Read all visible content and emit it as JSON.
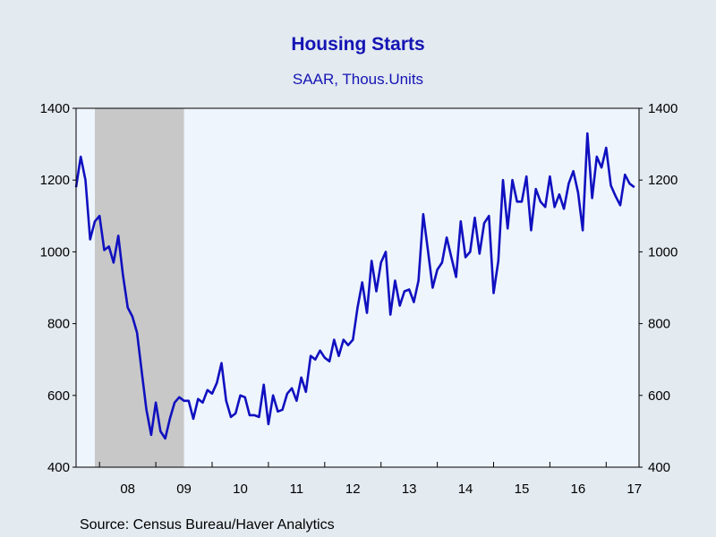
{
  "title": "Housing Starts",
  "subtitle": "SAAR, Thous.Units",
  "source": "Source:  Census Bureau/Haver Analytics",
  "chart_data": {
    "type": "line",
    "x_start": "2007-08",
    "x_end": "2017-08",
    "ylim": [
      400,
      1400
    ],
    "yticks": [
      400,
      600,
      800,
      1000,
      1200,
      1400
    ],
    "xticks": [
      {
        "label": "08",
        "year": 2008
      },
      {
        "label": "09",
        "year": 2009
      },
      {
        "label": "10",
        "year": 2010
      },
      {
        "label": "11",
        "year": 2011
      },
      {
        "label": "12",
        "year": 2012
      },
      {
        "label": "13",
        "year": 2013
      },
      {
        "label": "14",
        "year": 2014
      },
      {
        "label": "15",
        "year": 2015
      },
      {
        "label": "16",
        "year": 2016
      },
      {
        "label": "17",
        "year": 2017
      }
    ],
    "recession": {
      "start": "2007-12",
      "end": "2009-06"
    },
    "grid": false,
    "colors": {
      "line": "#1010c0",
      "recession": "#c8c8c8",
      "plot_bg": "#eef5fd",
      "text_accent": "#1414b4"
    },
    "series": [
      {
        "values": [
          1180,
          1265,
          1200,
          1035,
          1085,
          1100,
          1005,
          1015,
          970,
          1045,
          935,
          845,
          820,
          775,
          665,
          560,
          490,
          580,
          500,
          480,
          535,
          580,
          595,
          585,
          585,
          535,
          590,
          580,
          615,
          605,
          635,
          690,
          585,
          540,
          550,
          600,
          595,
          545,
          545,
          540,
          630,
          520,
          600,
          555,
          560,
          605,
          620,
          585,
          650,
          610,
          710,
          700,
          725,
          705,
          695,
          755,
          710,
          755,
          740,
          755,
          845,
          915,
          830,
          975,
          890,
          970,
          1000,
          825,
          920,
          850,
          890,
          895,
          860,
          920,
          1105,
          1005,
          900,
          950,
          970,
          1040,
          985,
          930,
          1085,
          985,
          1000,
          1095,
          995,
          1080,
          1100,
          885,
          975,
          1200,
          1065,
          1200,
          1140,
          1140,
          1210,
          1060,
          1175,
          1140,
          1125,
          1210,
          1125,
          1160,
          1120,
          1190,
          1225,
          1165,
          1060,
          1330,
          1150,
          1265,
          1235,
          1290,
          1185,
          1155,
          1130,
          1215,
          1190,
          1180
        ]
      }
    ]
  }
}
